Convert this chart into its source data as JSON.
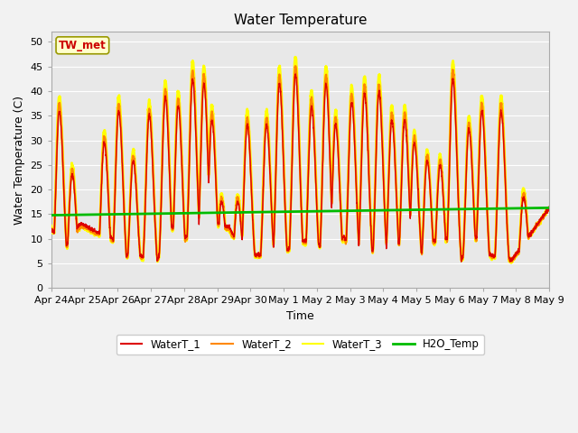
{
  "title": "Water Temperature",
  "xlabel": "Time",
  "ylabel": "Water Temperature (C)",
  "ylim": [
    0,
    52
  ],
  "yticks": [
    0,
    5,
    10,
    15,
    20,
    25,
    30,
    35,
    40,
    45,
    50
  ],
  "xtick_labels": [
    "Apr 24",
    "Apr 25",
    "Apr 26",
    "Apr 27",
    "Apr 28",
    "Apr 29",
    "Apr 30",
    "May 1",
    "May 2",
    "May 3",
    "May 4",
    "May 5",
    "May 6",
    "May 7",
    "May 8",
    "May 9"
  ],
  "line_colors": {
    "WaterT_1": "#dd0000",
    "WaterT_2": "#ff8800",
    "WaterT_3": "#ffff00",
    "H2O_Temp": "#00bb00"
  },
  "line_widths": {
    "WaterT_1": 1.0,
    "WaterT_2": 1.5,
    "WaterT_3": 2.0,
    "H2O_Temp": 2.0
  },
  "annotation_text": "TW_met",
  "annotation_color": "#cc0000",
  "annotation_bg": "#ffffcc",
  "annotation_border": "#999900",
  "plot_bg": "#e8e8e8",
  "fig_bg": "#f2f2f2",
  "grid_color": "#ffffff",
  "figsize": [
    6.4,
    4.8
  ],
  "dpi": 100,
  "legend_entries": [
    "WaterT_1",
    "WaterT_2",
    "WaterT_3",
    "H2O_Temp"
  ]
}
